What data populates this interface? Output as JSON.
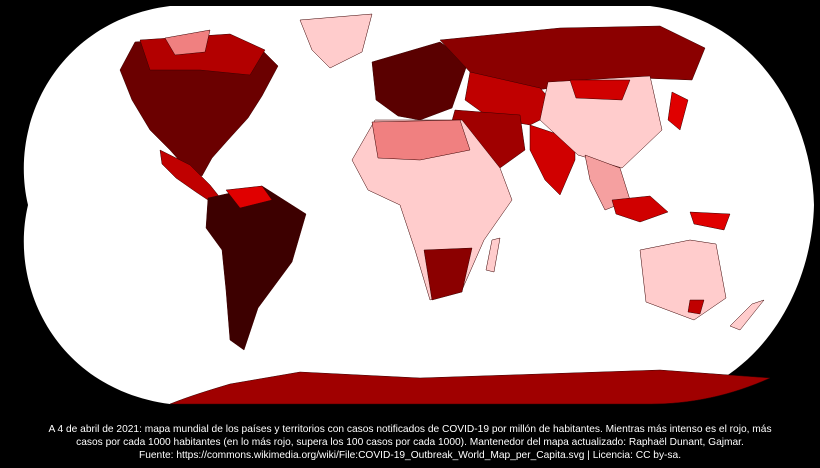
{
  "caption": {
    "lines": [
      "A 4 de abril de 2021: mapa mundial de los países y territorios con casos notificados de COVID-19 por millón de habitantes. Mientras más intenso es el rojo, más",
      "casos por cada 1000 habitantes (en lo más rojo, supera los 100 casos por cada 1000). Mantenedor del mapa actualizado: Raphaël Dunant, Gajmar.",
      "Fuente: https://commons.wikimedia.org/wiki/File:COVID-19_Outbreak_World_Map_per_Capita.svg | Licencia: CC by-sa."
    ]
  }
}
